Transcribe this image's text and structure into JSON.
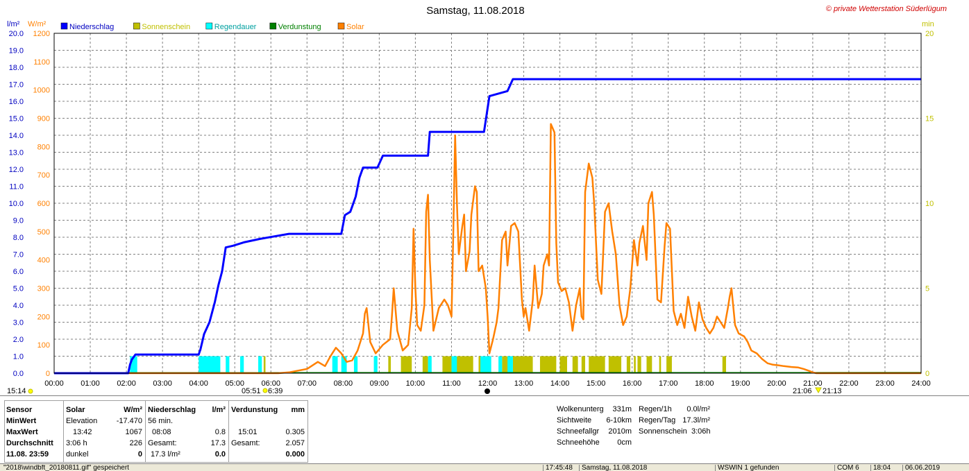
{
  "title": "Samstag, 11.08.2018",
  "copyright": "© private Wetterstation Süderlügum",
  "axis_units": {
    "left_primary": "l/m²",
    "left_secondary": "W/m²",
    "right": "min"
  },
  "colors": {
    "niederschlag": "#0000ff",
    "sonnenschein": "#c0c000",
    "regendauer": "#00ffff",
    "verdunstung": "#008000",
    "solar": "#ff8000",
    "left_axis": "#0000c0",
    "solar_axis": "#ff8000",
    "right_axis": "#c0c000"
  },
  "chart_data": {
    "type": "line",
    "title": "Samstag, 11.08.2018",
    "x_unit": "hours",
    "xlim": [
      0,
      24
    ],
    "x_ticks": [
      "00:00",
      "01:00",
      "02:00",
      "03:00",
      "04:00",
      "05:00",
      "06:00",
      "07:00",
      "08:00",
      "09:00",
      "10:00",
      "11:00",
      "12:00",
      "13:00",
      "14:00",
      "15:00",
      "16:00",
      "17:00",
      "18:00",
      "19:00",
      "20:00",
      "21:00",
      "22:00",
      "23:00",
      "24:00"
    ],
    "y_left": {
      "unit": "l/m²",
      "ylim": [
        0,
        20
      ],
      "ticks": [
        "0.0",
        "1.0",
        "2.0",
        "3.0",
        "4.0",
        "5.0",
        "6.0",
        "7.0",
        "8.0",
        "9.0",
        "10.0",
        "11.0",
        "12.0",
        "13.0",
        "14.0",
        "15.0",
        "16.0",
        "17.0",
        "18.0",
        "19.0",
        "20.0"
      ]
    },
    "y_solar": {
      "unit": "W/m²",
      "ylim": [
        0,
        1200
      ],
      "ticks": [
        "0",
        "100",
        "200",
        "300",
        "400",
        "500",
        "600",
        "700",
        "800",
        "900",
        "1000",
        "1100",
        "1200"
      ]
    },
    "y_right": {
      "unit": "min",
      "ylim": [
        0,
        20
      ],
      "ticks": [
        "0",
        "5",
        "10",
        "15",
        "20"
      ]
    },
    "grid": true,
    "legend": {
      "placement": "top-left"
    },
    "series": [
      {
        "name": "Niederschlag",
        "axis": "left",
        "points": [
          [
            0,
            0
          ],
          [
            2.05,
            0
          ],
          [
            2.1,
            0.5
          ],
          [
            2.15,
            0.8
          ],
          [
            2.25,
            1.1
          ],
          [
            4.0,
            1.1
          ],
          [
            4.05,
            1.4
          ],
          [
            4.15,
            2.3
          ],
          [
            4.3,
            3.0
          ],
          [
            4.45,
            4.2
          ],
          [
            4.55,
            5.2
          ],
          [
            4.65,
            6.0
          ],
          [
            4.75,
            7.4
          ],
          [
            4.95,
            7.5
          ],
          [
            5.25,
            7.7
          ],
          [
            5.7,
            7.9
          ],
          [
            6.5,
            8.2
          ],
          [
            7.4,
            8.2
          ],
          [
            7.95,
            8.2
          ],
          [
            8.05,
            9.3
          ],
          [
            8.2,
            9.5
          ],
          [
            8.35,
            10.4
          ],
          [
            8.45,
            11.5
          ],
          [
            8.55,
            12.1
          ],
          [
            8.95,
            12.1
          ],
          [
            9.1,
            12.8
          ],
          [
            10.35,
            12.8
          ],
          [
            10.4,
            14.2
          ],
          [
            11.9,
            14.2
          ],
          [
            12.05,
            16.3
          ],
          [
            12.55,
            16.6
          ],
          [
            12.7,
            17.3
          ],
          [
            24,
            17.3
          ]
        ]
      },
      {
        "name": "Sonnenschein",
        "axis": "right",
        "bars": [
          [
            5.8,
            5.85
          ],
          [
            9.25,
            9.32
          ],
          [
            9.6,
            9.9
          ],
          [
            10.2,
            10.35
          ],
          [
            10.75,
            11.6
          ],
          [
            11.75,
            11.85
          ],
          [
            11.9,
            12.0
          ],
          [
            12.4,
            12.6
          ],
          [
            12.7,
            13.25
          ],
          [
            13.45,
            13.9
          ],
          [
            14.0,
            14.2
          ],
          [
            14.35,
            14.5
          ],
          [
            14.6,
            14.7
          ],
          [
            14.8,
            15.25
          ],
          [
            15.35,
            15.7
          ],
          [
            15.85,
            15.95
          ],
          [
            16.05,
            16.1
          ],
          [
            16.15,
            16.25
          ],
          [
            16.4,
            16.55
          ],
          [
            16.75,
            16.8
          ],
          [
            16.95,
            17.1
          ],
          [
            18.5,
            18.6
          ]
        ]
      },
      {
        "name": "Regendauer",
        "axis": "right",
        "bars": [
          [
            2.1,
            2.3
          ],
          [
            4.0,
            4.6
          ],
          [
            4.75,
            4.85
          ],
          [
            5.15,
            5.25
          ],
          [
            5.65,
            5.75
          ],
          [
            7.7,
            7.85
          ],
          [
            7.95,
            8.1
          ],
          [
            8.3,
            8.4
          ],
          [
            8.85,
            8.95
          ],
          [
            10.35,
            10.45
          ],
          [
            11.0,
            11.15
          ],
          [
            11.8,
            12.1
          ],
          [
            12.3,
            12.4
          ],
          [
            12.55,
            12.7
          ]
        ]
      },
      {
        "name": "Verdunstung",
        "axis": "left",
        "points": [
          [
            0,
            0.02
          ],
          [
            24,
            0.03
          ]
        ]
      },
      {
        "name": "Solar",
        "axis": "solar",
        "points": [
          [
            0,
            0
          ],
          [
            6.2,
            0
          ],
          [
            6.5,
            3
          ],
          [
            7.0,
            15
          ],
          [
            7.3,
            40
          ],
          [
            7.5,
            25
          ],
          [
            7.65,
            60
          ],
          [
            7.8,
            90
          ],
          [
            7.95,
            70
          ],
          [
            8.1,
            40
          ],
          [
            8.25,
            45
          ],
          [
            8.4,
            80
          ],
          [
            8.55,
            140
          ],
          [
            8.6,
            210
          ],
          [
            8.65,
            230
          ],
          [
            8.75,
            110
          ],
          [
            8.9,
            70
          ],
          [
            9.1,
            100
          ],
          [
            9.3,
            120
          ],
          [
            9.35,
            200
          ],
          [
            9.4,
            300
          ],
          [
            9.5,
            150
          ],
          [
            9.65,
            80
          ],
          [
            9.8,
            100
          ],
          [
            9.9,
            230
          ],
          [
            9.95,
            510
          ],
          [
            10.0,
            300
          ],
          [
            10.05,
            170
          ],
          [
            10.15,
            150
          ],
          [
            10.25,
            240
          ],
          [
            10.3,
            570
          ],
          [
            10.35,
            630
          ],
          [
            10.4,
            400
          ],
          [
            10.5,
            150
          ],
          [
            10.65,
            230
          ],
          [
            10.8,
            260
          ],
          [
            10.9,
            240
          ],
          [
            11.0,
            200
          ],
          [
            11.05,
            500
          ],
          [
            11.1,
            840
          ],
          [
            11.15,
            600
          ],
          [
            11.2,
            420
          ],
          [
            11.3,
            520
          ],
          [
            11.35,
            560
          ],
          [
            11.4,
            360
          ],
          [
            11.5,
            430
          ],
          [
            11.55,
            560
          ],
          [
            11.65,
            660
          ],
          [
            11.7,
            640
          ],
          [
            11.75,
            360
          ],
          [
            11.85,
            380
          ],
          [
            11.95,
            300
          ],
          [
            12.0,
            200
          ],
          [
            12.05,
            70
          ],
          [
            12.15,
            120
          ],
          [
            12.25,
            180
          ],
          [
            12.3,
            230
          ],
          [
            12.4,
            470
          ],
          [
            12.5,
            500
          ],
          [
            12.55,
            380
          ],
          [
            12.65,
            520
          ],
          [
            12.75,
            530
          ],
          [
            12.85,
            500
          ],
          [
            12.95,
            260
          ],
          [
            13.0,
            200
          ],
          [
            13.05,
            230
          ],
          [
            13.15,
            150
          ],
          [
            13.25,
            260
          ],
          [
            13.3,
            380
          ],
          [
            13.4,
            230
          ],
          [
            13.5,
            280
          ],
          [
            13.55,
            380
          ],
          [
            13.65,
            420
          ],
          [
            13.7,
            380
          ],
          [
            13.75,
            880
          ],
          [
            13.85,
            850
          ],
          [
            13.9,
            460
          ],
          [
            13.95,
            320
          ],
          [
            14.05,
            290
          ],
          [
            14.15,
            300
          ],
          [
            14.25,
            250
          ],
          [
            14.35,
            150
          ],
          [
            14.45,
            240
          ],
          [
            14.55,
            300
          ],
          [
            14.6,
            200
          ],
          [
            14.65,
            190
          ],
          [
            14.7,
            640
          ],
          [
            14.8,
            740
          ],
          [
            14.9,
            690
          ],
          [
            14.95,
            600
          ],
          [
            15.05,
            330
          ],
          [
            15.15,
            280
          ],
          [
            15.25,
            570
          ],
          [
            15.35,
            600
          ],
          [
            15.45,
            500
          ],
          [
            15.55,
            420
          ],
          [
            15.65,
            240
          ],
          [
            15.75,
            170
          ],
          [
            15.85,
            200
          ],
          [
            15.95,
            300
          ],
          [
            16.05,
            470
          ],
          [
            16.15,
            380
          ],
          [
            16.2,
            460
          ],
          [
            16.3,
            520
          ],
          [
            16.4,
            400
          ],
          [
            16.45,
            600
          ],
          [
            16.55,
            640
          ],
          [
            16.6,
            560
          ],
          [
            16.7,
            260
          ],
          [
            16.8,
            250
          ],
          [
            16.9,
            450
          ],
          [
            16.95,
            530
          ],
          [
            17.05,
            510
          ],
          [
            17.15,
            220
          ],
          [
            17.25,
            170
          ],
          [
            17.35,
            210
          ],
          [
            17.45,
            160
          ],
          [
            17.55,
            270
          ],
          [
            17.65,
            200
          ],
          [
            17.75,
            150
          ],
          [
            17.85,
            250
          ],
          [
            17.95,
            190
          ],
          [
            18.05,
            160
          ],
          [
            18.15,
            140
          ],
          [
            18.25,
            160
          ],
          [
            18.35,
            200
          ],
          [
            18.45,
            180
          ],
          [
            18.55,
            160
          ],
          [
            18.65,
            230
          ],
          [
            18.7,
            270
          ],
          [
            18.75,
            300
          ],
          [
            18.85,
            170
          ],
          [
            18.95,
            140
          ],
          [
            19.1,
            130
          ],
          [
            19.2,
            110
          ],
          [
            19.3,
            80
          ],
          [
            19.45,
            70
          ],
          [
            19.6,
            50
          ],
          [
            19.75,
            35
          ],
          [
            19.9,
            30
          ],
          [
            20.05,
            28
          ],
          [
            20.2,
            25
          ],
          [
            20.4,
            22
          ],
          [
            20.6,
            20
          ],
          [
            20.75,
            15
          ],
          [
            20.9,
            8
          ],
          [
            21.0,
            3
          ],
          [
            21.1,
            0
          ],
          [
            24,
            0
          ]
        ]
      }
    ]
  },
  "markers": {
    "left_start_time": "15:14",
    "sunrise": "05:51",
    "sunrise2": "6:39",
    "sunset": "21:06",
    "sunset2": "21:13"
  },
  "table": {
    "headers": {
      "sensor": "Sensor",
      "solar": "Solar",
      "solar_unit": "W/m²",
      "niederschlag": "Niederschlag",
      "niederschlag_unit": "l/m²",
      "verdunstung": "Verdunstung",
      "verdunstung_unit": "mm"
    },
    "rows": [
      {
        "label": "MinWert",
        "solar_a": "Elevation",
        "solar_b": "-17.470",
        "nied_a": "56 min.",
        "nied_b": "",
        "verd_a": "",
        "verd_b": ""
      },
      {
        "label": "MaxWert",
        "solar_a": "13:42",
        "solar_b": "1067",
        "nied_a": "08:08",
        "nied_b": "0.8",
        "verd_a": "15:01",
        "verd_b": "0.305"
      },
      {
        "label": "Durchschnitt",
        "solar_a": "3:06 h",
        "solar_b": "226",
        "nied_a": "Gesamt:",
        "nied_b": "17.3",
        "verd_a": "Gesamt:",
        "verd_b": "2.057"
      },
      {
        "label": "11.08. 23:59",
        "solar_a": "dunkel",
        "solar_b": "0",
        "nied_a": "17.3 l/m²",
        "nied_b": "0.0",
        "verd_a": "",
        "verd_b": "0.000"
      }
    ]
  },
  "info_col1": [
    {
      "label": "Wolkenunterg",
      "value": "331m"
    },
    {
      "label": "Sichtweite",
      "value": "6-10km"
    },
    {
      "label": "Schneefallgr",
      "value": "2010m"
    },
    {
      "label": "Schneehöhe",
      "value": "0cm"
    }
  ],
  "info_col2": [
    {
      "label": "Regen/1h",
      "value": "0.0l/m²"
    },
    {
      "label": "Regen/Tag",
      "value": "17.3l/m²"
    },
    {
      "label": "Sonnenschein",
      "value": "3:06h"
    }
  ],
  "statusbar": {
    "message": "\"2018\\windbft_20180811.gif\" gespeichert",
    "time": "17:45:48",
    "date_label": "Samstag, 11.08.2018",
    "found": "WSWIN 1 gefunden",
    "port": "COM 6",
    "clock": "18:04",
    "date": "06.06.2019"
  }
}
